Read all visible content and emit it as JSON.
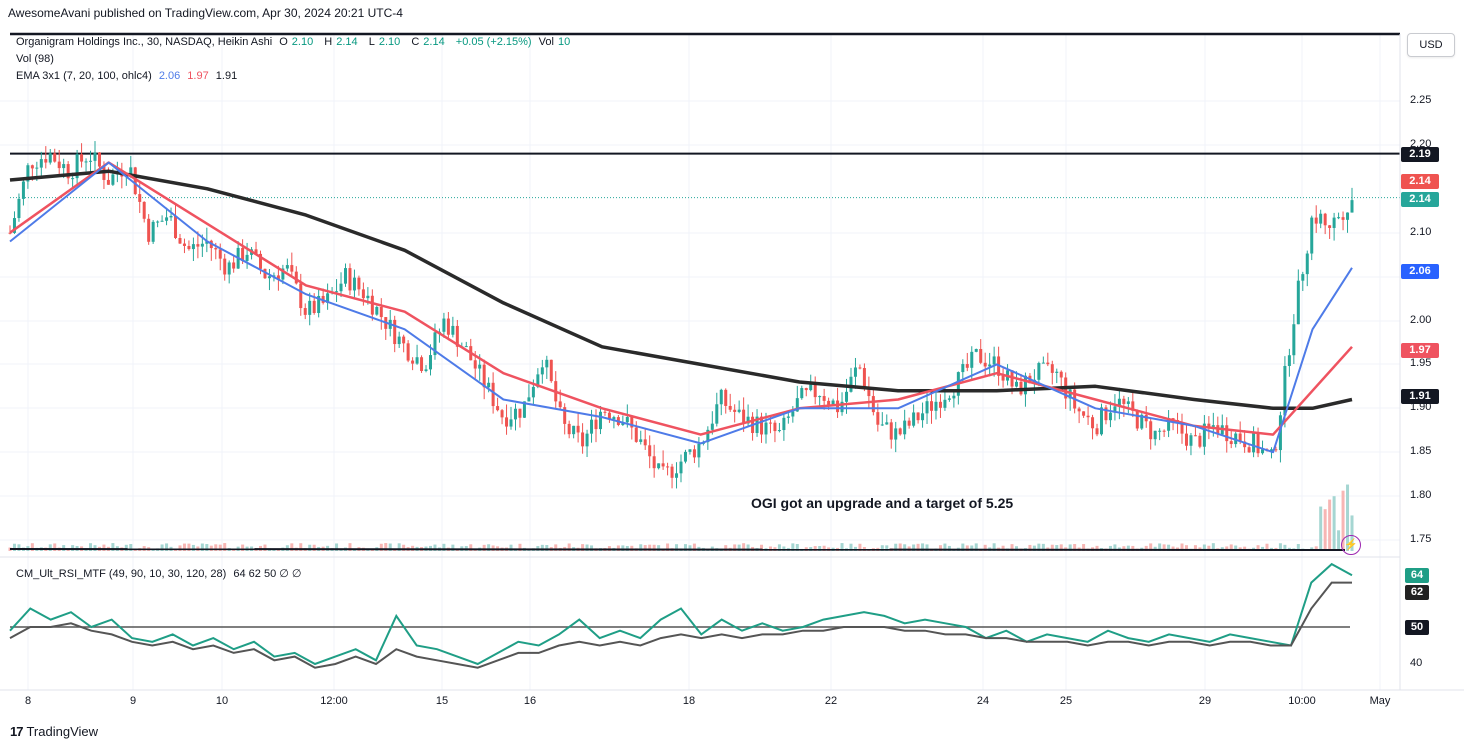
{
  "header": {
    "publish_line": "AwesomeAvani published on TradingView.com, Apr 30, 2024 20:21 UTC-4"
  },
  "legend": {
    "symbol": "Organigram Holdings Inc., 30, NASDAQ, Heikin Ashi",
    "o_label": "O",
    "o_value": "2.10",
    "h_label": "H",
    "h_value": "2.14",
    "l_label": "L",
    "l_value": "2.10",
    "c_label": "C",
    "c_value": "2.14",
    "change": "+0.05 (+2.15%)",
    "vol_label": "Vol",
    "vol_value": "10",
    "volume_line": "Vol (98)",
    "ema_label": "EMA 3x1 (7, 20, 100, ohlc4)",
    "ema_fast": "2.06",
    "ema_mid": "1.97",
    "ema_slow": "1.91",
    "rsi_label": "CM_Ult_RSI_MTF (49, 90, 10, 30, 120, 28)",
    "rsi_values": "64  62  50  ∅  ∅"
  },
  "toolbar": {
    "currency_button": "USD"
  },
  "annotation": "OGI got an upgrade and a target of 5.25",
  "footer": {
    "brand": "TradingView"
  },
  "colors": {
    "up": "#26a69a",
    "down": "#ef5350",
    "ema_fast": "#4e7be8",
    "ema_mid": "#ef5360",
    "ema_slow": "#2a2a2a",
    "rsi_main": "#1f9e86",
    "rsi_signal": "#555555"
  },
  "chart_data": [
    {
      "type": "candlestick",
      "title": "Organigram Holdings Inc., 30, NASDAQ, Heikin Ashi",
      "ylim": [
        1.72,
        2.28
      ],
      "y_ticks": [
        "2.25",
        "2.20",
        "2.10",
        "2.05",
        "2.00",
        "1.95",
        "1.90",
        "1.85",
        "1.80",
        "1.75"
      ],
      "x_ticks": [
        "8",
        "9",
        "10",
        "12:00",
        "15",
        "16",
        "18",
        "22",
        "24",
        "25",
        "29",
        "10:00",
        "May"
      ],
      "horizontal_line": 2.19,
      "last_close": 2.14,
      "price_tags": [
        {
          "value": "2.19",
          "color": "#131722"
        },
        {
          "value": "2.14",
          "color": "#ef5350"
        },
        {
          "value": "2.14",
          "color": "#26a69a"
        },
        {
          "value": "2.06",
          "color": "#2962ff"
        },
        {
          "value": "1.97",
          "color": "#ef5360"
        },
        {
          "value": "1.91",
          "color": "#131722"
        }
      ],
      "price_path": [
        [
          0,
          2.1
        ],
        [
          1,
          2.18
        ],
        [
          2,
          2.19
        ],
        [
          3,
          2.17
        ],
        [
          4,
          2.19
        ],
        [
          5,
          2.16
        ],
        [
          6,
          2.18
        ],
        [
          7,
          2.1
        ],
        [
          8,
          2.12
        ],
        [
          9,
          2.08
        ],
        [
          10,
          2.09
        ],
        [
          11,
          2.06
        ],
        [
          12,
          2.08
        ],
        [
          13,
          2.05
        ],
        [
          14,
          2.06
        ],
        [
          15,
          2.01
        ],
        [
          16,
          2.02
        ],
        [
          17,
          2.05
        ],
        [
          18,
          2.03
        ],
        [
          19,
          2.0
        ],
        [
          20,
          1.97
        ],
        [
          21,
          1.95
        ],
        [
          22,
          2.0
        ],
        [
          23,
          1.97
        ],
        [
          24,
          1.93
        ],
        [
          25,
          1.89
        ],
        [
          26,
          1.9
        ],
        [
          27,
          1.96
        ],
        [
          28,
          1.88
        ],
        [
          29,
          1.86
        ],
        [
          30,
          1.9
        ],
        [
          31,
          1.89
        ],
        [
          32,
          1.86
        ],
        [
          33,
          1.82
        ],
        [
          34,
          1.84
        ],
        [
          35,
          1.86
        ],
        [
          36,
          1.91
        ],
        [
          37,
          1.89
        ],
        [
          38,
          1.88
        ],
        [
          39,
          1.87
        ],
        [
          40,
          1.91
        ],
        [
          41,
          1.92
        ],
        [
          42,
          1.9
        ],
        [
          43,
          1.95
        ],
        [
          44,
          1.88
        ],
        [
          45,
          1.87
        ],
        [
          46,
          1.89
        ],
        [
          47,
          1.91
        ],
        [
          48,
          1.93
        ],
        [
          49,
          1.96
        ],
        [
          50,
          1.95
        ],
        [
          51,
          1.92
        ],
        [
          52,
          1.94
        ],
        [
          53,
          1.94
        ],
        [
          54,
          1.9
        ],
        [
          55,
          1.88
        ],
        [
          56,
          1.91
        ],
        [
          57,
          1.89
        ],
        [
          58,
          1.87
        ],
        [
          59,
          1.88
        ],
        [
          60,
          1.86
        ],
        [
          61,
          1.88
        ],
        [
          62,
          1.87
        ],
        [
          63,
          1.86
        ],
        [
          64,
          1.84
        ],
        [
          65,
          2.0
        ],
        [
          66,
          2.12
        ],
        [
          67,
          2.11
        ],
        [
          68,
          2.14
        ]
      ],
      "ema_fast_path": [
        [
          0,
          2.09
        ],
        [
          5,
          2.18
        ],
        [
          10,
          2.09
        ],
        [
          15,
          2.03
        ],
        [
          20,
          1.99
        ],
        [
          25,
          1.91
        ],
        [
          30,
          1.89
        ],
        [
          35,
          1.86
        ],
        [
          40,
          1.9
        ],
        [
          45,
          1.9
        ],
        [
          50,
          1.95
        ],
        [
          55,
          1.9
        ],
        [
          60,
          1.88
        ],
        [
          64,
          1.85
        ],
        [
          66,
          1.99
        ],
        [
          68,
          2.06
        ]
      ],
      "ema_mid_path": [
        [
          0,
          2.1
        ],
        [
          5,
          2.18
        ],
        [
          10,
          2.11
        ],
        [
          15,
          2.04
        ],
        [
          20,
          2.01
        ],
        [
          25,
          1.94
        ],
        [
          30,
          1.9
        ],
        [
          35,
          1.87
        ],
        [
          40,
          1.9
        ],
        [
          45,
          1.91
        ],
        [
          50,
          1.94
        ],
        [
          55,
          1.91
        ],
        [
          60,
          1.88
        ],
        [
          64,
          1.87
        ],
        [
          66,
          1.92
        ],
        [
          68,
          1.97
        ]
      ],
      "ema_slow_path": [
        [
          0,
          2.16
        ],
        [
          5,
          2.17
        ],
        [
          10,
          2.15
        ],
        [
          15,
          2.12
        ],
        [
          20,
          2.08
        ],
        [
          25,
          2.02
        ],
        [
          30,
          1.97
        ],
        [
          35,
          1.95
        ],
        [
          40,
          1.93
        ],
        [
          45,
          1.92
        ],
        [
          50,
          1.92
        ],
        [
          55,
          1.925
        ],
        [
          60,
          1.91
        ],
        [
          64,
          1.9
        ],
        [
          66,
          1.9
        ],
        [
          68,
          1.91
        ]
      ]
    },
    {
      "type": "line",
      "title": "CM_Ult_RSI_MTF (49, 90, 10, 30, 120, 28)",
      "ylim": [
        35,
        70
      ],
      "y_ticks": [
        "40"
      ],
      "reference_line": 50,
      "price_tags": [
        {
          "value": "64",
          "color": "#1f9e86"
        },
        {
          "value": "62",
          "color": "#222222"
        },
        {
          "value": "50",
          "color": "#131722"
        }
      ],
      "series": [
        {
          "values": [
            49,
            55,
            52,
            54,
            50,
            52,
            47,
            46,
            48,
            45,
            47,
            44,
            46,
            42,
            43,
            40,
            42,
            44,
            41,
            53,
            45,
            44,
            42,
            40,
            43,
            46,
            45,
            48,
            52,
            47,
            49,
            47,
            52,
            55,
            48,
            52,
            49,
            51,
            49,
            50,
            52,
            53,
            54,
            53,
            51,
            52,
            51,
            50,
            47,
            49,
            46,
            48,
            47,
            46,
            49,
            47,
            46,
            48,
            47,
            46,
            48,
            47,
            46,
            45,
            62,
            67,
            64
          ]
        },
        {
          "values": [
            47,
            50,
            50,
            51,
            49,
            48,
            46,
            45,
            46,
            44,
            45,
            43,
            44,
            41,
            42,
            39,
            40,
            42,
            40,
            44,
            42,
            41,
            40,
            39,
            41,
            43,
            43,
            45,
            46,
            45,
            46,
            45,
            47,
            48,
            47,
            48,
            47,
            48,
            48,
            49,
            49,
            50,
            50,
            50,
            49,
            49,
            48,
            48,
            47,
            47,
            46,
            46,
            46,
            45,
            46,
            46,
            45,
            46,
            46,
            45,
            46,
            46,
            45,
            45,
            55,
            62,
            62
          ]
        }
      ]
    }
  ]
}
